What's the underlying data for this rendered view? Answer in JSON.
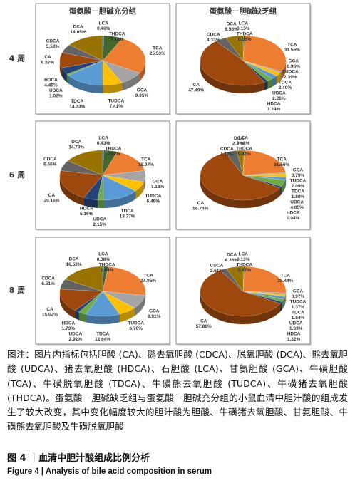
{
  "row_labels": [
    "4 周",
    "6 周",
    "8 周"
  ],
  "chart_data": [
    {
      "type": "pie",
      "title": "蛋氨酸－胆碱充分组",
      "categories": [
        "LCA",
        "THDCA",
        "TCA",
        "GCA",
        "TUDCA",
        "TDCA",
        "UDCA",
        "HDCA",
        "CA",
        "CDCA",
        "DCA"
      ],
      "values": [
        0.46,
        7.12,
        25.53,
        9.05,
        7.41,
        14.73,
        1.02,
        4.46,
        9.87,
        5.53,
        14.05
      ],
      "value_labels": [
        "0.46%",
        "7.12%",
        "25.53%",
        "9.05%",
        "7.41%",
        "14.73%",
        "1.02%",
        "4.46%",
        "9.87%",
        "5.53%",
        "14.05%"
      ],
      "colors": [
        "#255e91",
        "#43682b",
        "#ed7d31",
        "#a5a5a5",
        "#ffc000",
        "#5b9bd5",
        "#70ad47",
        "#264478",
        "#9e480e",
        "#636363",
        "#997300"
      ]
    },
    {
      "type": "pie",
      "title": "蛋氨酸－胆碱缺乏组",
      "categories": [
        "LCA",
        "THDCA",
        "TCA",
        "GCA",
        "TUDCA",
        "TDCA",
        "UDCA",
        "HDCA",
        "CA",
        "CDCA",
        "DCA"
      ],
      "values": [
        0.15,
        0.56,
        31.56,
        0.96,
        2.39,
        2.4,
        2.26,
        1.34,
        47.49,
        4.33,
        6.56
      ],
      "value_labels": [
        "0.15%",
        "0.56%",
        "31.56%",
        "0.96%",
        "2.39%",
        "2.40%",
        "2.26%",
        "1.34%",
        "47.49%",
        "4.33%",
        "6.56%"
      ],
      "colors": [
        "#255e91",
        "#43682b",
        "#ed7d31",
        "#a5a5a5",
        "#ffc000",
        "#5b9bd5",
        "#70ad47",
        "#264478",
        "#9e480e",
        "#636363",
        "#997300"
      ]
    },
    {
      "type": "pie",
      "categories": [
        "LCA",
        "THDCA",
        "TCA",
        "GCA",
        "TUDCA",
        "TDCA",
        "UDCA",
        "HDCA",
        "CA",
        "CDCA",
        "DCA"
      ],
      "values": [
        0.43,
        4.97,
        15.97,
        7.18,
        6.49,
        13.37,
        2.15,
        5.16,
        20.16,
        6.66,
        14.79
      ],
      "value_labels": [
        "0.43%",
        "4.97%",
        "15.97%",
        "7.18%",
        "6.49%",
        "13.37%",
        "2.15%",
        "5.16%",
        "20.16%",
        "6.66%",
        "14.79%"
      ],
      "colors": [
        "#255e91",
        "#43682b",
        "#ed7d31",
        "#a5a5a5",
        "#ffc000",
        "#5b9bd5",
        "#70ad47",
        "#264478",
        "#9e480e",
        "#636363",
        "#997300"
      ]
    },
    {
      "type": "pie",
      "categories": [
        "LCA",
        "THDCA",
        "TCA",
        "GCA",
        "TUDCA",
        "TDCA",
        "UDCA",
        "HDCA",
        "CA",
        "CDCA",
        "DCA"
      ],
      "values": [
        0.08,
        0.42,
        21.56,
        0.79,
        2.09,
        1.8,
        4.05,
        1.04,
        56.74,
        4.17,
        2.27
      ],
      "value_labels": [
        "0.08%",
        "0.42%",
        "21.56%",
        "0.79%",
        "2.09%",
        "1.80%",
        "4.05%",
        "1.04%",
        "56.74%",
        "4.17%",
        "2.27%"
      ],
      "colors": [
        "#255e91",
        "#43682b",
        "#ed7d31",
        "#a5a5a5",
        "#ffc000",
        "#5b9bd5",
        "#70ad47",
        "#264478",
        "#9e480e",
        "#636363",
        "#997300"
      ]
    },
    {
      "type": "pie",
      "categories": [
        "LCA",
        "THDCA",
        "TCA",
        "GCA",
        "TUDCA",
        "TDCA",
        "UDCA",
        "HDCA",
        "CA",
        "CDCA",
        "DCA"
      ],
      "values": [
        0.38,
        1.64,
        24.95,
        8.91,
        6.76,
        12.64,
        2.92,
        1.73,
        15.02,
        6.51,
        16.53
      ],
      "value_labels": [
        "0.38%",
        "1.64%",
        "24.95%",
        "8.91%",
        "6.76%",
        "12.64%",
        "2.92%",
        "1.73%",
        "15.02%",
        "6.51%",
        "16.53%"
      ],
      "colors": [
        "#255e91",
        "#43682b",
        "#ed7d31",
        "#a5a5a5",
        "#ffc000",
        "#5b9bd5",
        "#70ad47",
        "#264478",
        "#9e480e",
        "#636363",
        "#997300"
      ]
    },
    {
      "type": "pie",
      "categories": [
        "LCA",
        "THDCA",
        "TCA",
        "GCA",
        "TUDCA",
        "TDCA",
        "UDCA",
        "HDCA",
        "CA",
        "CDCA",
        "DCA"
      ],
      "values": [
        0.13,
        0.47,
        25.44,
        0.97,
        1.37,
        1.84,
        1.69,
        1.32,
        57.8,
        2.61,
        6.36
      ],
      "value_labels": [
        "0.13%",
        "0.47%",
        "25.44%",
        "0.97%",
        "1.37%",
        "1.84%",
        "1.69%",
        "1.32%",
        "57.80%",
        "2.61%",
        "6.36%"
      ],
      "colors": [
        "#255e91",
        "#43682b",
        "#ed7d31",
        "#a5a5a5",
        "#ffc000",
        "#5b9bd5",
        "#70ad47",
        "#264478",
        "#9e480e",
        "#636363",
        "#997300"
      ]
    }
  ],
  "caption": {
    "note": "图注：图片内指标包括胆酸 (CA)、鹅去氧胆酸 (CDCA)、脱氧胆酸 (DCA)、熊去氧胆酸 (UDCA)、猪去氧胆酸 (HDCA)、石胆酸 (LCA)、甘氨胆酸 (GCA)、牛磺胆酸 (TCA)、牛磺脱氧胆酸 (TDCA)、牛磺熊去氧胆酸 (TUDCA)、牛磺猪去氧胆酸 (THDCA)。蛋氨酸－胆碱缺乏组与蛋氨酸－胆碱充分组的小鼠血清中胆汁酸的组成发生了较大改变，其中变化幅度较大的胆汁酸为胆酸、牛磺猪去氧胆酸、甘氨胆酸、牛磺熊去氧胆酸及牛磺脱氧胆酸",
    "figure_label_cn": "图 4 ｜血清中胆汁酸组成比例分析",
    "figure_label_en": "Figure 4  |  Analysis of bile acid composition in serum"
  }
}
